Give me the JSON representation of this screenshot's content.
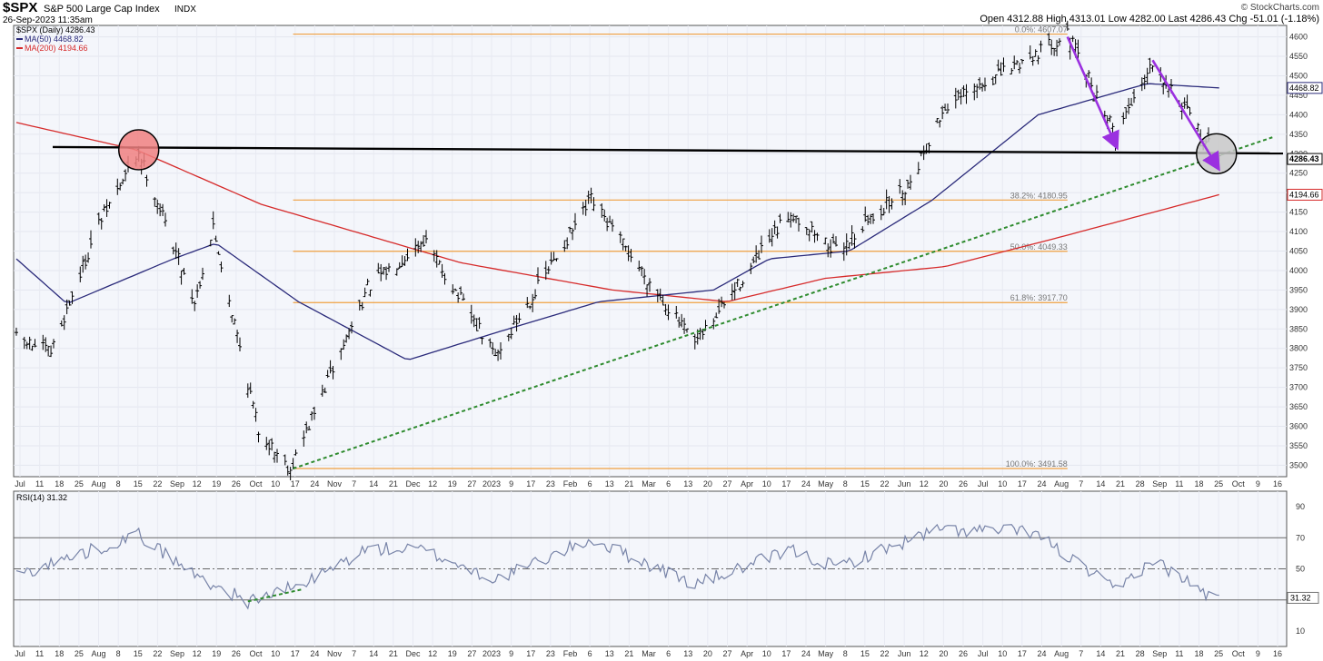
{
  "header": {
    "symbol": "$SPX",
    "name": "S&P 500 Large Cap Index",
    "exchange": "INDX",
    "datetime": "26-Sep-2023 11:35am",
    "quote": "Open 4312.88  High 4313.01  Low 4282.00  Last 4286.43  Chg -51.01 (-1.18%)",
    "credit": "© StockCharts.com"
  },
  "legend": {
    "main": "$SPX (Daily) 4286.43",
    "ma50": "MA(50) 4468.82",
    "ma200": "MA(200) 4194.66",
    "rsi": "RSI(14) 31.32"
  },
  "colors": {
    "price": "#000000",
    "ma50": "#2a2a7a",
    "ma200": "#d62a2a",
    "fib": "#f0a040",
    "trend": "#2e8b2e",
    "arrow": "#9b30e0",
    "rsi": "#7884a8",
    "highlight_red": "#f08080",
    "highlight_gray": "#c8c8c8",
    "background": "#f4f6fb"
  },
  "x_axis": {
    "labels": [
      "Jul",
      "11",
      "18",
      "25",
      "Aug",
      "8",
      "15",
      "22",
      "Sep",
      "12",
      "19",
      "26",
      "Oct",
      "10",
      "17",
      "24",
      "Nov",
      "7",
      "14",
      "21",
      "Dec",
      "12",
      "19",
      "27",
      "2023",
      "9",
      "17",
      "23",
      "Feb",
      "6",
      "13",
      "21",
      "Mar",
      "6",
      "13",
      "20",
      "27",
      "Apr",
      "10",
      "17",
      "24",
      "May",
      "8",
      "15",
      "22",
      "Jun",
      "12",
      "20",
      "26",
      "Jul",
      "10",
      "17",
      "24",
      "Aug",
      "7",
      "14",
      "21",
      "28",
      "Sep",
      "11",
      "18",
      "25",
      "Oct",
      "9",
      "16"
    ]
  },
  "chart_data": [
    {
      "type": "line",
      "title": "$SPX (Daily) 4286.43",
      "series_style": "ohlc-bars",
      "ylim": [
        3480,
        4620
      ],
      "yticks": [
        3500,
        3550,
        3600,
        3650,
        3700,
        3750,
        3800,
        3850,
        3900,
        3950,
        4000,
        4050,
        4100,
        4150,
        4200,
        4250,
        4300,
        4350,
        4400,
        4450,
        4500,
        4550,
        4600
      ],
      "last_labels": [
        "4468.82",
        "4286.43",
        "4194.66"
      ],
      "price_path": [
        {
          "x": "2022-07-01",
          "y": 3825
        },
        {
          "x": "2022-07-14",
          "y": 3790
        },
        {
          "x": "2022-08-01",
          "y": 4120
        },
        {
          "x": "2022-08-16",
          "y": 4305
        },
        {
          "x": "2022-09-06",
          "y": 3920
        },
        {
          "x": "2022-09-13",
          "y": 4110
        },
        {
          "x": "2022-09-30",
          "y": 3590
        },
        {
          "x": "2022-10-12",
          "y": 3491.58
        },
        {
          "x": "2022-11-10",
          "y": 3955
        },
        {
          "x": "2022-12-01",
          "y": 4080
        },
        {
          "x": "2022-12-28",
          "y": 3780
        },
        {
          "x": "2023-02-02",
          "y": 4180
        },
        {
          "x": "2023-03-13",
          "y": 3810
        },
        {
          "x": "2023-04-18",
          "y": 4150
        },
        {
          "x": "2023-05-05",
          "y": 4050
        },
        {
          "x": "2023-06-01",
          "y": 4220
        },
        {
          "x": "2023-06-15",
          "y": 4420
        },
        {
          "x": "2023-07-31",
          "y": 4607.07
        },
        {
          "x": "2023-08-18",
          "y": 4350
        },
        {
          "x": "2023-09-01",
          "y": 4540
        },
        {
          "x": "2023-09-21",
          "y": 4330
        },
        {
          "x": "2023-09-26",
          "y": 4286.43
        }
      ],
      "ma50": [
        {
          "x": "2022-07-01",
          "y": 4030
        },
        {
          "x": "2022-07-20",
          "y": 3915
        },
        {
          "x": "2022-08-29",
          "y": 4030
        },
        {
          "x": "2022-09-14",
          "y": 4070
        },
        {
          "x": "2022-10-15",
          "y": 3920
        },
        {
          "x": "2022-11-25",
          "y": 3770
        },
        {
          "x": "2022-12-28",
          "y": 3840
        },
        {
          "x": "2023-02-05",
          "y": 3920
        },
        {
          "x": "2023-03-20",
          "y": 3950
        },
        {
          "x": "2023-04-10",
          "y": 4030
        },
        {
          "x": "2023-05-10",
          "y": 4050
        },
        {
          "x": "2023-06-10",
          "y": 4180
        },
        {
          "x": "2023-07-20",
          "y": 4400
        },
        {
          "x": "2023-08-30",
          "y": 4480
        },
        {
          "x": "2023-09-26",
          "y": 4468.82
        }
      ],
      "ma200": [
        {
          "x": "2022-07-01",
          "y": 4380
        },
        {
          "x": "2022-08-15",
          "y": 4310
        },
        {
          "x": "2022-10-01",
          "y": 4170
        },
        {
          "x": "2022-12-15",
          "y": 4020
        },
        {
          "x": "2023-02-10",
          "y": 3950
        },
        {
          "x": "2023-03-25",
          "y": 3920
        },
        {
          "x": "2023-05-01",
          "y": 3980
        },
        {
          "x": "2023-06-15",
          "y": 4010
        },
        {
          "x": "2023-07-25",
          "y": 4080
        },
        {
          "x": "2023-09-26",
          "y": 4194.66
        }
      ],
      "fibonacci": [
        {
          "label": "0.0%: 4607.07",
          "value": 4607.07
        },
        {
          "label": "38.2%: 4180.95",
          "value": 4180.95
        },
        {
          "label": "50.0%: 4049.33",
          "value": 4049.33
        },
        {
          "label": "61.8%: 3917.70",
          "value": 3917.7
        },
        {
          "label": "100.0%: 3491.58",
          "value": 3491.58
        }
      ],
      "annotations": {
        "horizontal_resistance": 4310,
        "trendline": [
          {
            "x": "2022-10-13",
            "y": 3491.58
          },
          {
            "x": "2023-10-16",
            "y": 4342
          }
        ],
        "arrows": [
          {
            "from": {
              "x": "2023-07-31",
              "y": 4600
            },
            "to": {
              "x": "2023-08-18",
              "y": 4325
            }
          },
          {
            "from": {
              "x": "2023-09-01",
              "y": 4540
            },
            "to": {
              "x": "2023-09-25",
              "y": 4270
            }
          }
        ],
        "circles": [
          {
            "x": "2022-08-16",
            "y": 4310,
            "color": "red"
          },
          {
            "x": "2023-09-25",
            "y": 4300,
            "color": "gray"
          }
        ]
      }
    },
    {
      "type": "line",
      "title": "RSI(14) 31.32",
      "ylim": [
        0,
        100
      ],
      "yticks": [
        10,
        30,
        50,
        70,
        90
      ],
      "reference_lines": [
        30,
        50,
        70
      ],
      "last_label": "31.32",
      "values_path": [
        {
          "x": "2022-07-01",
          "y": 46
        },
        {
          "x": "2022-08-16",
          "y": 72
        },
        {
          "x": "2022-09-06",
          "y": 46
        },
        {
          "x": "2022-09-26",
          "y": 29
        },
        {
          "x": "2022-10-17",
          "y": 40
        },
        {
          "x": "2022-11-10",
          "y": 63
        },
        {
          "x": "2022-12-01",
          "y": 62
        },
        {
          "x": "2022-12-28",
          "y": 43
        },
        {
          "x": "2023-02-02",
          "y": 69
        },
        {
          "x": "2023-03-13",
          "y": 40
        },
        {
          "x": "2023-04-18",
          "y": 62
        },
        {
          "x": "2023-05-05",
          "y": 51
        },
        {
          "x": "2023-06-12",
          "y": 75
        },
        {
          "x": "2023-07-18",
          "y": 74
        },
        {
          "x": "2023-08-18",
          "y": 36
        },
        {
          "x": "2023-09-01",
          "y": 56
        },
        {
          "x": "2023-09-21",
          "y": 34
        },
        {
          "x": "2023-09-26",
          "y": 31.32
        }
      ],
      "divergence_line": [
        {
          "x": "2022-09-26",
          "y": 29
        },
        {
          "x": "2022-10-17",
          "y": 37
        }
      ]
    }
  ]
}
